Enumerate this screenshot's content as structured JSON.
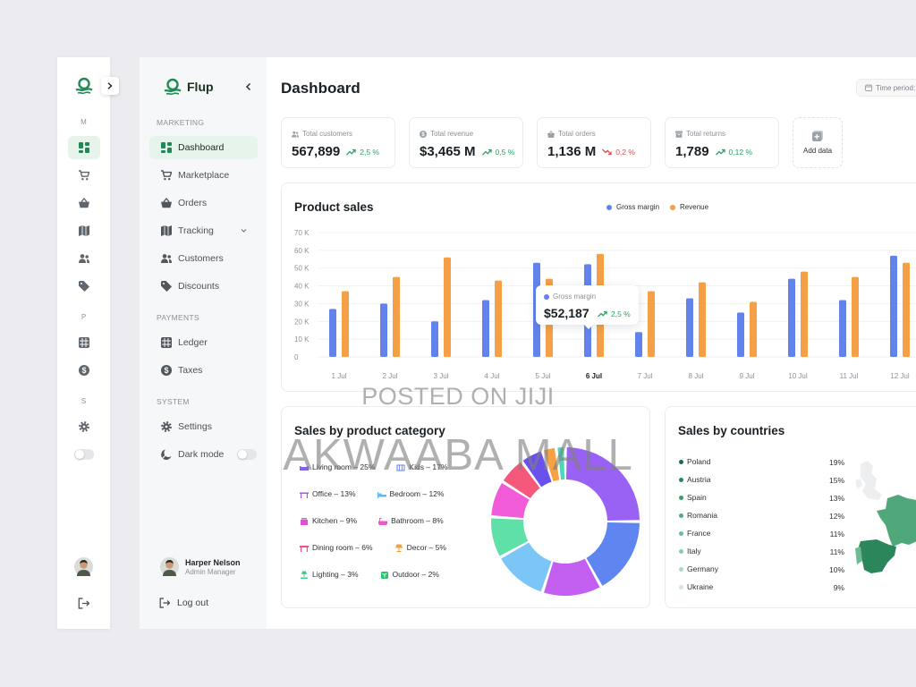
{
  "app": {
    "name": "Flup"
  },
  "rail": {
    "section_letters": [
      "M",
      "P",
      "S"
    ]
  },
  "sidebar": {
    "sections": [
      {
        "title": "MARKETING",
        "items": [
          {
            "label": "Dashboard",
            "icon": "dashboard-icon",
            "active": true
          },
          {
            "label": "Marketplace",
            "icon": "cart-icon"
          },
          {
            "label": "Orders",
            "icon": "basket-icon"
          },
          {
            "label": "Tracking",
            "icon": "map-icon",
            "has_submenu": true
          },
          {
            "label": "Customers",
            "icon": "customers-icon"
          },
          {
            "label": "Discounts",
            "icon": "tag-icon"
          }
        ]
      },
      {
        "title": "PAYMENTS",
        "items": [
          {
            "label": "Ledger",
            "icon": "ledger-icon"
          },
          {
            "label": "Taxes",
            "icon": "taxes-icon"
          }
        ]
      },
      {
        "title": "SYSTEM",
        "items": [
          {
            "label": "Settings",
            "icon": "gear-icon"
          },
          {
            "label": "Dark mode",
            "icon": "moon-icon",
            "toggle": true,
            "toggle_on": false
          }
        ]
      }
    ],
    "user": {
      "name": "Harper Nelson",
      "role": "Admin Manager"
    },
    "logout_label": "Log out"
  },
  "header": {
    "title": "Dashboard",
    "time_period_label": "Time period:"
  },
  "kpis": [
    {
      "label": "Total customers",
      "icon": "people-icon",
      "value": "567,899",
      "change": "2,5 %",
      "trend": "up"
    },
    {
      "label": "Total revenue",
      "icon": "money-icon",
      "value": "$3,465 M",
      "change": "0,5 %",
      "trend": "up"
    },
    {
      "label": "Total orders",
      "icon": "bag-icon",
      "value": "1,136 M",
      "change": "0,2 %",
      "trend": "down"
    },
    {
      "label": "Total returns",
      "icon": "box-icon",
      "value": "1,789",
      "change": "0,12 %",
      "trend": "up"
    }
  ],
  "add_data_label": "Add data",
  "product_sales": {
    "title": "Product sales",
    "tooltip": {
      "series": "Gross margin",
      "value": "$52,187",
      "change": "2,5 %",
      "category": "6 Jul"
    }
  },
  "chart_data": [
    {
      "type": "bar",
      "title": "Product sales",
      "categories": [
        "1 Jul",
        "2 Jul",
        "3 Jul",
        "4 Jul",
        "5 Jul",
        "6 Jul",
        "7 Jul",
        "8 Jul",
        "9 Jul",
        "10 Jul",
        "11 Jul",
        "12 Jul"
      ],
      "highlighted_category": "6 Jul",
      "series": [
        {
          "name": "Gross margin",
          "color": "#6383ec",
          "values": [
            27,
            30,
            20,
            32,
            53,
            52.2,
            14,
            33,
            25,
            44,
            32,
            57
          ]
        },
        {
          "name": "Revenue",
          "color": "#f5a047",
          "values": [
            37,
            45,
            56,
            43,
            44,
            58,
            37,
            42,
            31,
            48,
            45,
            53
          ]
        }
      ],
      "y_unit": "K",
      "ylim": [
        0,
        70
      ],
      "y_ticks": [
        0,
        10,
        20,
        30,
        40,
        50,
        60,
        70
      ],
      "y_tick_labels": [
        "0",
        "10 K",
        "20 K",
        "30 K",
        "40 K",
        "50 K",
        "60 K",
        "70 K"
      ],
      "grid": true,
      "legend_position": "top-right"
    },
    {
      "type": "pie",
      "variant": "donut",
      "title": "Sales by product category",
      "categories": [
        "Living room",
        "Kids",
        "Office",
        "Bedroom",
        "Kitchen",
        "Bathroom",
        "Dining room",
        "Decor",
        "Lighting",
        "Outdoor"
      ],
      "values": [
        25,
        17,
        13,
        12,
        9,
        8,
        6,
        5,
        3,
        2
      ],
      "legend_position": "left"
    }
  ],
  "category_sales": {
    "title": "Sales by product category",
    "items": [
      {
        "label": "Living room – 25%",
        "icon": "sofa-icon",
        "color": "#8b5cf6",
        "segment_color": "#9a62f4"
      },
      {
        "label": "Kids – 17%",
        "icon": "crib-icon",
        "color": "#5b7cf7",
        "segment_color": "#5f85f0"
      },
      {
        "label": "Office – 13%",
        "icon": "desk-icon",
        "color": "#a855f7",
        "segment_color": "#c25ff1"
      },
      {
        "label": "Bedroom – 12%",
        "icon": "bed-icon",
        "color": "#5fb8f5",
        "segment_color": "#7cc6f7"
      },
      {
        "label": "Kitchen – 9%",
        "icon": "kitchen-icon",
        "color": "#e14fd4",
        "segment_color": "#60e0a9"
      },
      {
        "label": "Bathroom – 8%",
        "icon": "bathtub-icon",
        "color": "#e85ac8",
        "segment_color": "#f15bd7"
      },
      {
        "label": "Dining room – 6%",
        "icon": "dining-icon",
        "color": "#f0508a",
        "segment_color": "#f4587a"
      },
      {
        "label": "Decor – 5%",
        "icon": "lamp-icon",
        "color": "#f59e42",
        "segment_color": "#6a50ef"
      },
      {
        "label": "Lighting – 3%",
        "icon": "lighting-icon",
        "color": "#3ecf8e",
        "segment_color": "#f7a140"
      },
      {
        "label": "Outdoor – 2%",
        "icon": "plant-icon",
        "color": "#2fbf71",
        "segment_color": "#4fd6b8"
      }
    ]
  },
  "country_sales": {
    "title": "Sales by countries",
    "items": [
      {
        "name": "Poland",
        "pct": "19%",
        "color": "#1d6a48"
      },
      {
        "name": "Austria",
        "pct": "15%",
        "color": "#2b875b"
      },
      {
        "name": "Spain",
        "pct": "13%",
        "color": "#3c9b6b"
      },
      {
        "name": "Romania",
        "pct": "12%",
        "color": "#53ac7f"
      },
      {
        "name": "France",
        "pct": "11%",
        "color": "#6bbc93"
      },
      {
        "name": "Italy",
        "pct": "11%",
        "color": "#8ccba8"
      },
      {
        "name": "Germany",
        "pct": "10%",
        "color": "#acdac0"
      },
      {
        "name": "Ukraine",
        "pct": "9%",
        "color": "#cfe8da"
      }
    ]
  },
  "watermarks": {
    "line1": "POSTED ON JIJI",
    "line2": "AKWAABA MALL"
  },
  "colors": {
    "brand": "#1f8a55",
    "active_bg": "#e6f4ec",
    "positive": "#27a265",
    "negative": "#e5484d"
  }
}
